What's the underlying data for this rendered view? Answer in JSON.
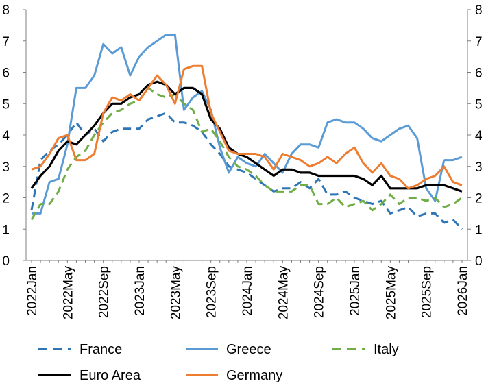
{
  "chart_data": {
    "type": "line",
    "title": "",
    "xlabel": "",
    "ylabel": "",
    "ylim": [
      0,
      8
    ],
    "yticks": [
      0,
      1,
      2,
      3,
      4,
      5,
      6,
      7,
      8
    ],
    "secondary_yticks": [
      0,
      1,
      2,
      3,
      4,
      5,
      6,
      7,
      8
    ],
    "grid": false,
    "legend_position": "bottom",
    "x_start": "2022Jan",
    "x_tick_labels": [
      "2022Jan",
      "2022May",
      "2022Sep",
      "2023Jan",
      "2023May",
      "2023Sep",
      "2024Jan",
      "2024May",
      "2024Sep",
      "2025Jan",
      "2025May",
      "2025Sep",
      "2026Jan"
    ],
    "x_tick_every": 4,
    "series": [
      {
        "name": "France",
        "color": "#2E75B6",
        "style": "dashed",
        "values": [
          1.6,
          3.2,
          3.5,
          3.7,
          4.0,
          4.4,
          4.0,
          4.2,
          3.8,
          4.1,
          4.2,
          4.2,
          4.2,
          4.5,
          4.6,
          4.7,
          4.4,
          4.4,
          4.3,
          4.1,
          3.7,
          3.4,
          3.0,
          2.9,
          2.8,
          2.6,
          2.4,
          2.2,
          2.3,
          2.3,
          2.5,
          2.3,
          2.6,
          2.1,
          2.1,
          2.2,
          2.0,
          1.9,
          1.8,
          1.9,
          1.5,
          1.6,
          1.7,
          1.4,
          1.5,
          1.5,
          1.2,
          1.3,
          1.0
        ]
      },
      {
        "name": "Greece",
        "color": "#5B9BD5",
        "style": "solid",
        "values": [
          1.5,
          1.5,
          2.5,
          2.6,
          3.7,
          5.5,
          5.5,
          5.9,
          6.9,
          6.6,
          6.8,
          5.9,
          6.5,
          6.8,
          7.0,
          7.2,
          7.2,
          4.8,
          5.2,
          5.4,
          4.8,
          3.6,
          2.8,
          3.3,
          3.1,
          3.0,
          3.4,
          3.1,
          2.8,
          3.4,
          3.7,
          3.7,
          3.6,
          4.4,
          4.5,
          4.4,
          4.4,
          4.2,
          3.9,
          3.8,
          4.0,
          4.2,
          4.3,
          3.9,
          2.3,
          1.9,
          3.2,
          3.2,
          3.3
        ]
      },
      {
        "name": "Italy",
        "color": "#70AD47",
        "style": "dashed",
        "values": [
          1.3,
          1.8,
          1.8,
          2.2,
          2.9,
          3.3,
          3.5,
          4.0,
          4.4,
          4.7,
          4.8,
          5.0,
          5.1,
          5.5,
          5.3,
          5.2,
          5.3,
          5.0,
          4.8,
          4.1,
          4.2,
          3.8,
          3.3,
          3.0,
          2.9,
          2.7,
          2.4,
          2.2,
          2.2,
          2.2,
          2.4,
          2.4,
          1.8,
          1.8,
          2.0,
          1.7,
          1.8,
          1.9,
          1.6,
          1.8,
          2.1,
          1.8,
          2.0,
          2.0,
          1.9,
          2.0,
          1.7,
          1.8,
          2.0
        ]
      },
      {
        "name": "Euro Area",
        "color": "#000000",
        "style": "solid",
        "values": [
          2.3,
          2.7,
          3.0,
          3.5,
          3.8,
          3.7,
          4.0,
          4.3,
          4.7,
          5.0,
          5.0,
          5.2,
          5.3,
          5.6,
          5.7,
          5.6,
          5.3,
          5.5,
          5.5,
          5.3,
          4.5,
          4.2,
          3.6,
          3.4,
          3.3,
          3.1,
          2.9,
          2.7,
          2.9,
          2.9,
          2.8,
          2.8,
          2.7,
          2.7,
          2.7,
          2.7,
          2.7,
          2.6,
          2.4,
          2.7,
          2.3,
          2.3,
          2.3,
          2.3,
          2.4,
          2.4,
          2.4,
          2.3,
          2.2
        ]
      },
      {
        "name": "Germany",
        "color": "#ED7D31",
        "style": "solid",
        "values": [
          2.9,
          3.0,
          3.4,
          3.9,
          4.0,
          3.2,
          3.2,
          3.4,
          4.7,
          5.2,
          5.1,
          5.3,
          5.1,
          5.5,
          5.9,
          5.6,
          5.0,
          6.1,
          6.2,
          6.2,
          4.7,
          4.1,
          3.5,
          3.4,
          3.4,
          3.4,
          3.3,
          2.9,
          3.4,
          3.3,
          3.2,
          3.0,
          3.1,
          3.3,
          3.1,
          3.4,
          3.6,
          3.1,
          2.8,
          3.1,
          2.7,
          2.6,
          2.3,
          2.4,
          2.6,
          2.7,
          3.0,
          2.5,
          2.4
        ]
      }
    ]
  }
}
